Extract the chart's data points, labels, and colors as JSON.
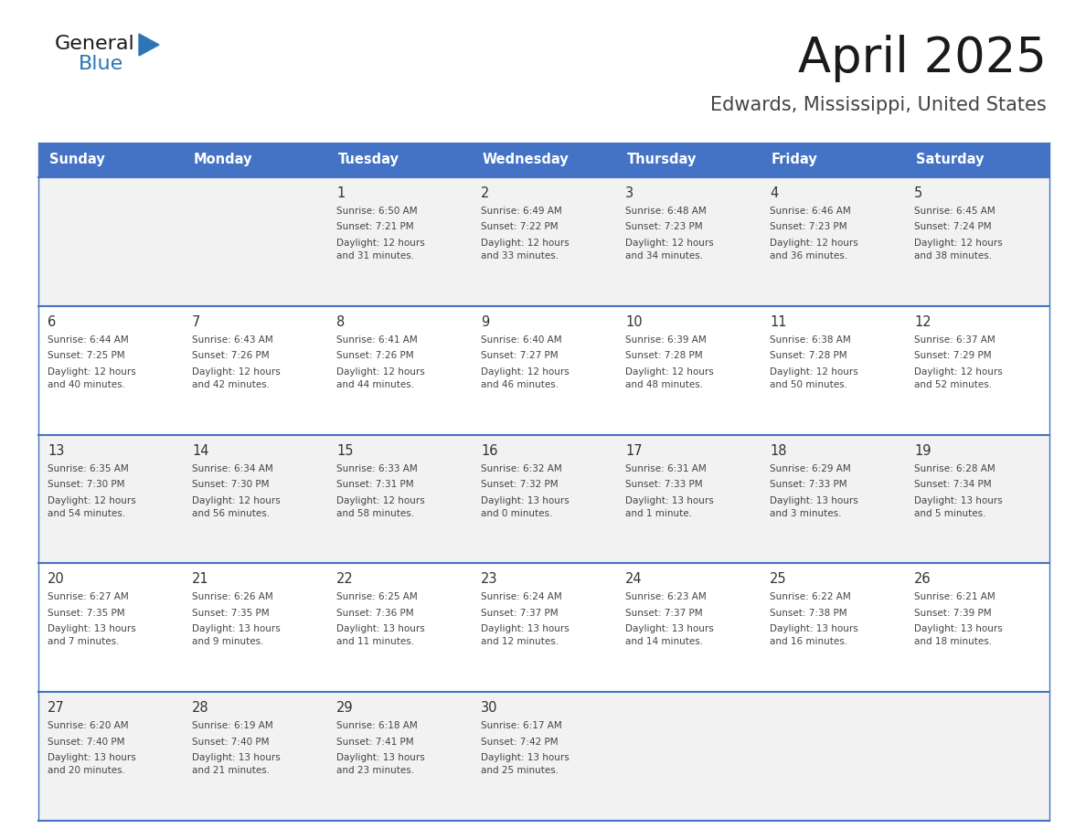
{
  "title": "April 2025",
  "subtitle": "Edwards, Mississippi, United States",
  "header_bg_color": "#4472C4",
  "header_text_color": "#FFFFFF",
  "day_names": [
    "Sunday",
    "Monday",
    "Tuesday",
    "Wednesday",
    "Thursday",
    "Friday",
    "Saturday"
  ],
  "row_bg_even": "#F2F2F2",
  "row_bg_odd": "#FFFFFF",
  "divider_color": "#4472C4",
  "date_text_color": "#333333",
  "info_text_color": "#444444",
  "title_color": "#1a1a1a",
  "subtitle_color": "#444444",
  "logo_general_color": "#1a1a1a",
  "logo_blue_color": "#2E75B6",
  "weeks": [
    [
      {
        "day": "",
        "sunrise": "",
        "sunset": "",
        "daylight": ""
      },
      {
        "day": "",
        "sunrise": "",
        "sunset": "",
        "daylight": ""
      },
      {
        "day": "1",
        "sunrise": "Sunrise: 6:50 AM",
        "sunset": "Sunset: 7:21 PM",
        "daylight": "Daylight: 12 hours\nand 31 minutes."
      },
      {
        "day": "2",
        "sunrise": "Sunrise: 6:49 AM",
        "sunset": "Sunset: 7:22 PM",
        "daylight": "Daylight: 12 hours\nand 33 minutes."
      },
      {
        "day": "3",
        "sunrise": "Sunrise: 6:48 AM",
        "sunset": "Sunset: 7:23 PM",
        "daylight": "Daylight: 12 hours\nand 34 minutes."
      },
      {
        "day": "4",
        "sunrise": "Sunrise: 6:46 AM",
        "sunset": "Sunset: 7:23 PM",
        "daylight": "Daylight: 12 hours\nand 36 minutes."
      },
      {
        "day": "5",
        "sunrise": "Sunrise: 6:45 AM",
        "sunset": "Sunset: 7:24 PM",
        "daylight": "Daylight: 12 hours\nand 38 minutes."
      }
    ],
    [
      {
        "day": "6",
        "sunrise": "Sunrise: 6:44 AM",
        "sunset": "Sunset: 7:25 PM",
        "daylight": "Daylight: 12 hours\nand 40 minutes."
      },
      {
        "day": "7",
        "sunrise": "Sunrise: 6:43 AM",
        "sunset": "Sunset: 7:26 PM",
        "daylight": "Daylight: 12 hours\nand 42 minutes."
      },
      {
        "day": "8",
        "sunrise": "Sunrise: 6:41 AM",
        "sunset": "Sunset: 7:26 PM",
        "daylight": "Daylight: 12 hours\nand 44 minutes."
      },
      {
        "day": "9",
        "sunrise": "Sunrise: 6:40 AM",
        "sunset": "Sunset: 7:27 PM",
        "daylight": "Daylight: 12 hours\nand 46 minutes."
      },
      {
        "day": "10",
        "sunrise": "Sunrise: 6:39 AM",
        "sunset": "Sunset: 7:28 PM",
        "daylight": "Daylight: 12 hours\nand 48 minutes."
      },
      {
        "day": "11",
        "sunrise": "Sunrise: 6:38 AM",
        "sunset": "Sunset: 7:28 PM",
        "daylight": "Daylight: 12 hours\nand 50 minutes."
      },
      {
        "day": "12",
        "sunrise": "Sunrise: 6:37 AM",
        "sunset": "Sunset: 7:29 PM",
        "daylight": "Daylight: 12 hours\nand 52 minutes."
      }
    ],
    [
      {
        "day": "13",
        "sunrise": "Sunrise: 6:35 AM",
        "sunset": "Sunset: 7:30 PM",
        "daylight": "Daylight: 12 hours\nand 54 minutes."
      },
      {
        "day": "14",
        "sunrise": "Sunrise: 6:34 AM",
        "sunset": "Sunset: 7:30 PM",
        "daylight": "Daylight: 12 hours\nand 56 minutes."
      },
      {
        "day": "15",
        "sunrise": "Sunrise: 6:33 AM",
        "sunset": "Sunset: 7:31 PM",
        "daylight": "Daylight: 12 hours\nand 58 minutes."
      },
      {
        "day": "16",
        "sunrise": "Sunrise: 6:32 AM",
        "sunset": "Sunset: 7:32 PM",
        "daylight": "Daylight: 13 hours\nand 0 minutes."
      },
      {
        "day": "17",
        "sunrise": "Sunrise: 6:31 AM",
        "sunset": "Sunset: 7:33 PM",
        "daylight": "Daylight: 13 hours\nand 1 minute."
      },
      {
        "day": "18",
        "sunrise": "Sunrise: 6:29 AM",
        "sunset": "Sunset: 7:33 PM",
        "daylight": "Daylight: 13 hours\nand 3 minutes."
      },
      {
        "day": "19",
        "sunrise": "Sunrise: 6:28 AM",
        "sunset": "Sunset: 7:34 PM",
        "daylight": "Daylight: 13 hours\nand 5 minutes."
      }
    ],
    [
      {
        "day": "20",
        "sunrise": "Sunrise: 6:27 AM",
        "sunset": "Sunset: 7:35 PM",
        "daylight": "Daylight: 13 hours\nand 7 minutes."
      },
      {
        "day": "21",
        "sunrise": "Sunrise: 6:26 AM",
        "sunset": "Sunset: 7:35 PM",
        "daylight": "Daylight: 13 hours\nand 9 minutes."
      },
      {
        "day": "22",
        "sunrise": "Sunrise: 6:25 AM",
        "sunset": "Sunset: 7:36 PM",
        "daylight": "Daylight: 13 hours\nand 11 minutes."
      },
      {
        "day": "23",
        "sunrise": "Sunrise: 6:24 AM",
        "sunset": "Sunset: 7:37 PM",
        "daylight": "Daylight: 13 hours\nand 12 minutes."
      },
      {
        "day": "24",
        "sunrise": "Sunrise: 6:23 AM",
        "sunset": "Sunset: 7:37 PM",
        "daylight": "Daylight: 13 hours\nand 14 minutes."
      },
      {
        "day": "25",
        "sunrise": "Sunrise: 6:22 AM",
        "sunset": "Sunset: 7:38 PM",
        "daylight": "Daylight: 13 hours\nand 16 minutes."
      },
      {
        "day": "26",
        "sunrise": "Sunrise: 6:21 AM",
        "sunset": "Sunset: 7:39 PM",
        "daylight": "Daylight: 13 hours\nand 18 minutes."
      }
    ],
    [
      {
        "day": "27",
        "sunrise": "Sunrise: 6:20 AM",
        "sunset": "Sunset: 7:40 PM",
        "daylight": "Daylight: 13 hours\nand 20 minutes."
      },
      {
        "day": "28",
        "sunrise": "Sunrise: 6:19 AM",
        "sunset": "Sunset: 7:40 PM",
        "daylight": "Daylight: 13 hours\nand 21 minutes."
      },
      {
        "day": "29",
        "sunrise": "Sunrise: 6:18 AM",
        "sunset": "Sunset: 7:41 PM",
        "daylight": "Daylight: 13 hours\nand 23 minutes."
      },
      {
        "day": "30",
        "sunrise": "Sunrise: 6:17 AM",
        "sunset": "Sunset: 7:42 PM",
        "daylight": "Daylight: 13 hours\nand 25 minutes."
      },
      {
        "day": "",
        "sunrise": "",
        "sunset": "",
        "daylight": ""
      },
      {
        "day": "",
        "sunrise": "",
        "sunset": "",
        "daylight": ""
      },
      {
        "day": "",
        "sunrise": "",
        "sunset": "",
        "daylight": ""
      }
    ]
  ]
}
